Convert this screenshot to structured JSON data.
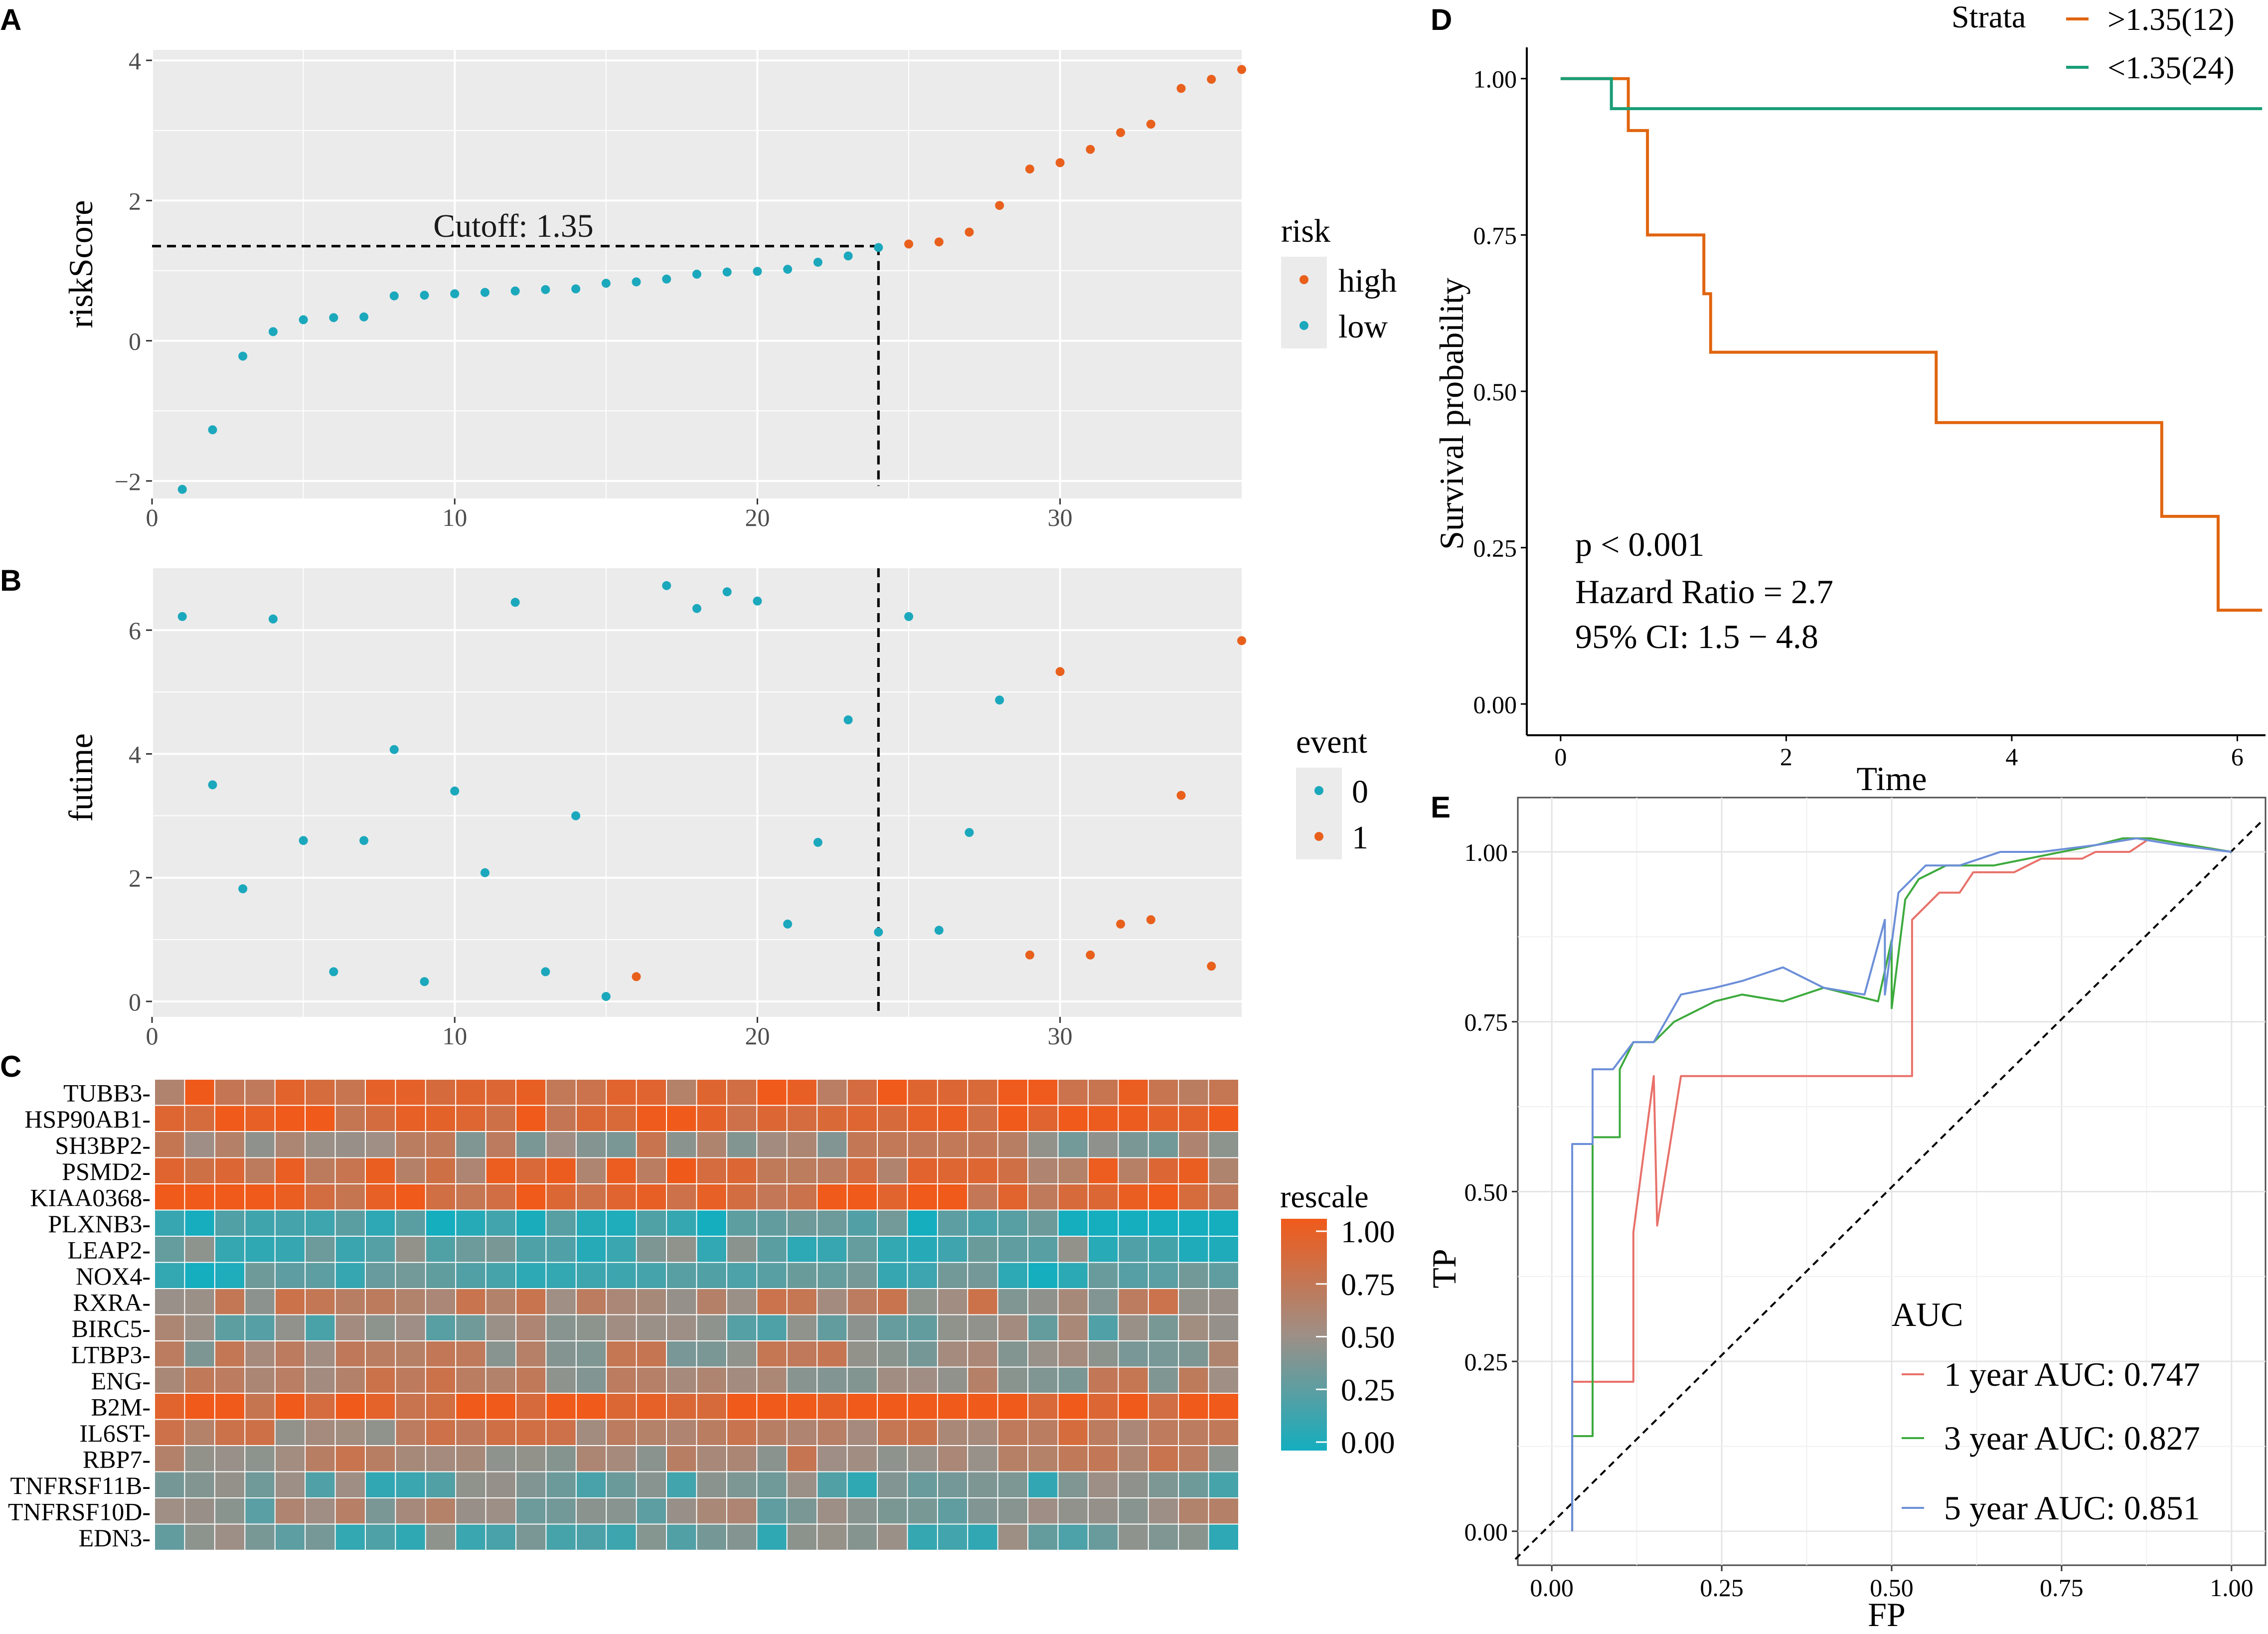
{
  "colors": {
    "high": "#E8601C",
    "low": "#1BA8BC",
    "panel_bg": "#EBEBEB",
    "grid": "#FFFFFF",
    "roc1": "#E8716A",
    "roc3": "#3DAA3D",
    "roc5": "#6C8FD8",
    "km_high": "#E06510",
    "km_low": "#1B9E77"
  },
  "chart_data": [
    {
      "id": "A",
      "panel_label": "A",
      "type": "scatter",
      "ylabel": "riskScore",
      "xlim": [
        0,
        36
      ],
      "ylim": [
        -2.25,
        4.15
      ],
      "xticks": [
        0,
        10,
        20,
        30
      ],
      "yticks": [
        -2,
        0,
        2,
        4
      ],
      "yticklabels": [
        "−2",
        "0",
        "2",
        "4"
      ],
      "cutoff_x": 24,
      "cutoff_y": 1.35,
      "cutoff_label": "Cutoff: 1.35",
      "legend_title": "risk",
      "legend": [
        "high",
        "low"
      ],
      "points": [
        {
          "x": 1,
          "y": -2.12,
          "g": "low"
        },
        {
          "x": 2,
          "y": -1.27,
          "g": "low"
        },
        {
          "x": 3,
          "y": -0.22,
          "g": "low"
        },
        {
          "x": 4,
          "y": 0.13,
          "g": "low"
        },
        {
          "x": 5,
          "y": 0.3,
          "g": "low"
        },
        {
          "x": 6,
          "y": 0.33,
          "g": "low"
        },
        {
          "x": 7,
          "y": 0.34,
          "g": "low"
        },
        {
          "x": 8,
          "y": 0.64,
          "g": "low"
        },
        {
          "x": 9,
          "y": 0.65,
          "g": "low"
        },
        {
          "x": 10,
          "y": 0.67,
          "g": "low"
        },
        {
          "x": 11,
          "y": 0.69,
          "g": "low"
        },
        {
          "x": 12,
          "y": 0.71,
          "g": "low"
        },
        {
          "x": 13,
          "y": 0.73,
          "g": "low"
        },
        {
          "x": 14,
          "y": 0.74,
          "g": "low"
        },
        {
          "x": 15,
          "y": 0.82,
          "g": "low"
        },
        {
          "x": 16,
          "y": 0.84,
          "g": "low"
        },
        {
          "x": 17,
          "y": 0.88,
          "g": "low"
        },
        {
          "x": 18,
          "y": 0.95,
          "g": "low"
        },
        {
          "x": 19,
          "y": 0.98,
          "g": "low"
        },
        {
          "x": 20,
          "y": 0.99,
          "g": "low"
        },
        {
          "x": 21,
          "y": 1.02,
          "g": "low"
        },
        {
          "x": 22,
          "y": 1.12,
          "g": "low"
        },
        {
          "x": 23,
          "y": 1.21,
          "g": "low"
        },
        {
          "x": 24,
          "y": 1.33,
          "g": "low"
        },
        {
          "x": 25,
          "y": 1.38,
          "g": "high"
        },
        {
          "x": 26,
          "y": 1.41,
          "g": "high"
        },
        {
          "x": 27,
          "y": 1.55,
          "g": "high"
        },
        {
          "x": 28,
          "y": 1.93,
          "g": "high"
        },
        {
          "x": 29,
          "y": 2.45,
          "g": "high"
        },
        {
          "x": 30,
          "y": 2.54,
          "g": "high"
        },
        {
          "x": 31,
          "y": 2.73,
          "g": "high"
        },
        {
          "x": 32,
          "y": 2.97,
          "g": "high"
        },
        {
          "x": 33,
          "y": 3.09,
          "g": "high"
        },
        {
          "x": 34,
          "y": 3.6,
          "g": "high"
        },
        {
          "x": 35,
          "y": 3.73,
          "g": "high"
        },
        {
          "x": 36,
          "y": 3.87,
          "g": "high"
        }
      ]
    },
    {
      "id": "B",
      "panel_label": "B",
      "type": "scatter",
      "ylabel": "futime",
      "xlim": [
        0,
        36
      ],
      "ylim": [
        -0.25,
        7.0
      ],
      "xticks": [
        0,
        10,
        20,
        30
      ],
      "yticks": [
        0,
        2,
        4,
        6
      ],
      "yticklabels": [
        "0",
        "2",
        "4",
        "6"
      ],
      "cutoff_x": 24,
      "legend_title": "event",
      "legend": [
        "0",
        "1"
      ],
      "points": [
        {
          "x": 1,
          "y": 6.22,
          "e": 0
        },
        {
          "x": 2,
          "y": 3.5,
          "e": 0
        },
        {
          "x": 3,
          "y": 1.82,
          "e": 0
        },
        {
          "x": 4,
          "y": 6.18,
          "e": 0
        },
        {
          "x": 5,
          "y": 2.6,
          "e": 0
        },
        {
          "x": 6,
          "y": 0.48,
          "e": 0
        },
        {
          "x": 7,
          "y": 2.6,
          "e": 0
        },
        {
          "x": 8,
          "y": 4.07,
          "e": 0
        },
        {
          "x": 9,
          "y": 0.32,
          "e": 0
        },
        {
          "x": 10,
          "y": 3.4,
          "e": 0
        },
        {
          "x": 11,
          "y": 2.08,
          "e": 0
        },
        {
          "x": 12,
          "y": 6.45,
          "e": 0
        },
        {
          "x": 13,
          "y": 0.48,
          "e": 0
        },
        {
          "x": 14,
          "y": 3.0,
          "e": 0
        },
        {
          "x": 15,
          "y": 0.08,
          "e": 0
        },
        {
          "x": 16,
          "y": 0.4,
          "e": 1
        },
        {
          "x": 17,
          "y": 6.72,
          "e": 0
        },
        {
          "x": 18,
          "y": 6.35,
          "e": 0
        },
        {
          "x": 19,
          "y": 6.62,
          "e": 0
        },
        {
          "x": 20,
          "y": 6.47,
          "e": 0
        },
        {
          "x": 21,
          "y": 1.25,
          "e": 0
        },
        {
          "x": 22,
          "y": 2.57,
          "e": 0
        },
        {
          "x": 23,
          "y": 4.55,
          "e": 0
        },
        {
          "x": 24,
          "y": 1.12,
          "e": 0
        },
        {
          "x": 25,
          "y": 6.22,
          "e": 0
        },
        {
          "x": 26,
          "y": 1.15,
          "e": 0
        },
        {
          "x": 27,
          "y": 2.73,
          "e": 0
        },
        {
          "x": 28,
          "y": 4.87,
          "e": 0
        },
        {
          "x": 29,
          "y": 0.75,
          "e": 1
        },
        {
          "x": 30,
          "y": 5.33,
          "e": 1
        },
        {
          "x": 31,
          "y": 0.75,
          "e": 1
        },
        {
          "x": 32,
          "y": 1.25,
          "e": 1
        },
        {
          "x": 33,
          "y": 1.32,
          "e": 1
        },
        {
          "x": 34,
          "y": 3.33,
          "e": 1
        },
        {
          "x": 35,
          "y": 0.57,
          "e": 1
        },
        {
          "x": 36,
          "y": 5.83,
          "e": 1
        }
      ]
    },
    {
      "id": "C",
      "panel_label": "C",
      "type": "heatmap",
      "genes": [
        "TUBB3-",
        "HSP90AB1-",
        "SH3BP2-",
        "PSMD2-",
        "KIAA0368-",
        "PLXNB3-",
        "LEAP2-",
        "NOX4-",
        "RXRA-",
        "BIRC5-",
        "LTBP3-",
        "ENG-",
        "B2M-",
        "IL6ST-",
        "RBP7-",
        "TNFRSF11B-",
        "TNFRSF10D-",
        "EDN3-"
      ],
      "n_samples": 36,
      "row_means": [
        0.82,
        0.92,
        0.55,
        0.8,
        0.85,
        0.15,
        0.25,
        0.15,
        0.6,
        0.4,
        0.55,
        0.58,
        0.95,
        0.65,
        0.6,
        0.3,
        0.45,
        0.3
      ],
      "legend_title": "rescale",
      "legend_ticks": [
        "1.00",
        "0.75",
        "0.50",
        "0.25",
        "0.00"
      ]
    },
    {
      "id": "D",
      "panel_label": "D",
      "type": "line",
      "xlabel": "Time",
      "ylabel": "Survival probability",
      "xlim": [
        -0.3,
        6.25
      ],
      "ylim": [
        -0.05,
        1.05
      ],
      "xticks": [
        0,
        2,
        4,
        6
      ],
      "yticks": [
        0,
        0.25,
        0.5,
        0.75,
        1.0
      ],
      "yticklabels": [
        "0.00",
        "0.25",
        "0.50",
        "0.75",
        "1.00"
      ],
      "legend_title": "Strata",
      "series": [
        {
          "name": ">1.35(12)",
          "color_key": "km_high",
          "steps": [
            [
              0,
              1.0
            ],
            [
              0.6,
              1.0
            ],
            [
              0.6,
              0.917
            ],
            [
              0.77,
              0.917
            ],
            [
              0.77,
              0.75
            ],
            [
              1.27,
              0.75
            ],
            [
              1.27,
              0.656
            ],
            [
              1.33,
              0.656
            ],
            [
              1.33,
              0.5625
            ],
            [
              3.33,
              0.5625
            ],
            [
              3.33,
              0.45
            ],
            [
              5.33,
              0.45
            ],
            [
              5.33,
              0.3
            ],
            [
              5.83,
              0.3
            ],
            [
              5.83,
              0.15
            ],
            [
              6.22,
              0.15
            ]
          ]
        },
        {
          "name": "<1.35(24)",
          "color_key": "km_low",
          "steps": [
            [
              0,
              1.0
            ],
            [
              0.45,
              1.0
            ],
            [
              0.45,
              0.952
            ],
            [
              6.22,
              0.952
            ]
          ]
        }
      ],
      "annotations": [
        "p < 0.001",
        "Hazard Ratio = 2.7",
        "95% CI: 1.5 − 4.8"
      ]
    },
    {
      "id": "E",
      "panel_label": "E",
      "type": "line",
      "xlabel": "FP",
      "ylabel": "TP",
      "xlim": [
        -0.05,
        1.05
      ],
      "ylim": [
        -0.05,
        1.08
      ],
      "xticks": [
        0,
        0.25,
        0.5,
        0.75,
        1.0
      ],
      "xticklabels": [
        "0.00",
        "0.25",
        "0.50",
        "0.75",
        "1.00"
      ],
      "yticks": [
        0,
        0.25,
        0.5,
        0.75,
        1.0
      ],
      "yticklabels": [
        "0.00",
        "0.25",
        "0.50",
        "0.75",
        "1.00"
      ],
      "legend_title": "AUC",
      "series": [
        {
          "name": "1 year AUC: 0.747",
          "color_key": "roc1",
          "points": [
            [
              0.03,
              0
            ],
            [
              0.03,
              0.14
            ],
            [
              0.03,
              0.22
            ],
            [
              0.12,
              0.22
            ],
            [
              0.12,
              0.44
            ],
            [
              0.15,
              0.67
            ],
            [
              0.155,
              0.45
            ],
            [
              0.19,
              0.67
            ],
            [
              0.53,
              0.67
            ],
            [
              0.53,
              0.9
            ],
            [
              0.57,
              0.94
            ],
            [
              0.6,
              0.94
            ],
            [
              0.62,
              0.97
            ],
            [
              0.68,
              0.97
            ],
            [
              0.72,
              0.99
            ],
            [
              0.78,
              0.99
            ],
            [
              0.8,
              1.0
            ],
            [
              0.85,
              1.0
            ],
            [
              0.88,
              1.02
            ],
            [
              1.0,
              1.0
            ]
          ]
        },
        {
          "name": "3 year AUC: 0.827",
          "color_key": "roc3",
          "points": [
            [
              0.03,
              0
            ],
            [
              0.03,
              0.14
            ],
            [
              0.06,
              0.14
            ],
            [
              0.06,
              0.58
            ],
            [
              0.1,
              0.58
            ],
            [
              0.1,
              0.68
            ],
            [
              0.12,
              0.72
            ],
            [
              0.15,
              0.72
            ],
            [
              0.18,
              0.75
            ],
            [
              0.24,
              0.78
            ],
            [
              0.28,
              0.79
            ],
            [
              0.34,
              0.78
            ],
            [
              0.4,
              0.8
            ],
            [
              0.48,
              0.78
            ],
            [
              0.5,
              0.87
            ],
            [
              0.5,
              0.77
            ],
            [
              0.52,
              0.93
            ],
            [
              0.54,
              0.96
            ],
            [
              0.58,
              0.98
            ],
            [
              0.65,
              0.98
            ],
            [
              0.7,
              0.99
            ],
            [
              0.75,
              1.0
            ],
            [
              0.8,
              1.01
            ],
            [
              0.84,
              1.02
            ],
            [
              0.88,
              1.02
            ],
            [
              1.0,
              1.0
            ]
          ]
        },
        {
          "name": "5 year AUC: 0.851",
          "color_key": "roc5",
          "points": [
            [
              0.03,
              0
            ],
            [
              0.03,
              0.57
            ],
            [
              0.06,
              0.57
            ],
            [
              0.06,
              0.68
            ],
            [
              0.09,
              0.68
            ],
            [
              0.12,
              0.72
            ],
            [
              0.15,
              0.72
            ],
            [
              0.19,
              0.79
            ],
            [
              0.24,
              0.8
            ],
            [
              0.28,
              0.81
            ],
            [
              0.34,
              0.83
            ],
            [
              0.4,
              0.8
            ],
            [
              0.46,
              0.79
            ],
            [
              0.49,
              0.9
            ],
            [
              0.49,
              0.79
            ],
            [
              0.51,
              0.94
            ],
            [
              0.55,
              0.98
            ],
            [
              0.6,
              0.98
            ],
            [
              0.66,
              1.0
            ],
            [
              0.72,
              1.0
            ],
            [
              0.8,
              1.01
            ],
            [
              0.86,
              1.02
            ],
            [
              0.92,
              1.01
            ],
            [
              1.0,
              1.0
            ]
          ]
        }
      ]
    }
  ]
}
